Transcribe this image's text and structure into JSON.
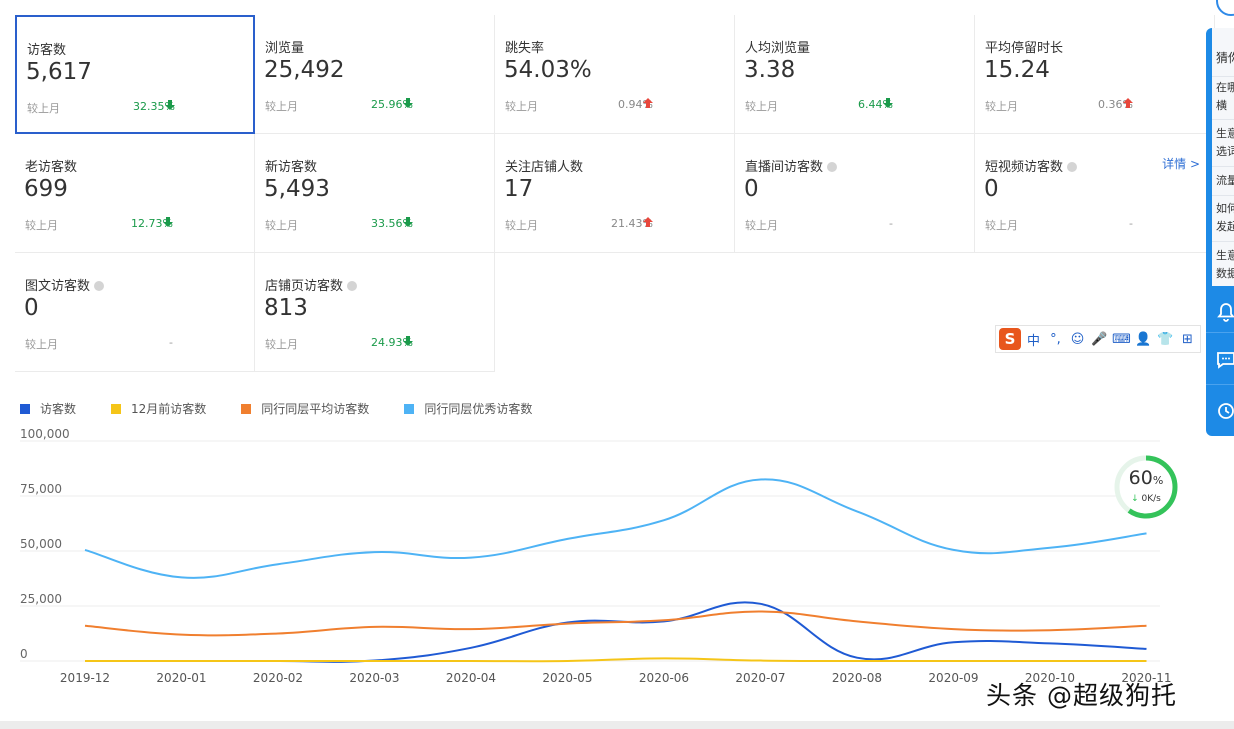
{
  "cards": [
    {
      "title": "访客数",
      "value": "5,617",
      "cmp": "较上月",
      "pct": "32.35%",
      "dir": "down",
      "help": false
    },
    {
      "title": "浏览量",
      "value": "25,492",
      "cmp": "较上月",
      "pct": "25.96%",
      "dir": "down",
      "help": false
    },
    {
      "title": "跳失率",
      "value": "54.03%",
      "cmp": "较上月",
      "pct": "0.94%",
      "dir": "up",
      "help": false
    },
    {
      "title": "人均浏览量",
      "value": "3.38",
      "cmp": "较上月",
      "pct": "6.44%",
      "dir": "down",
      "help": false
    },
    {
      "title": "平均停留时长",
      "value": "15.24",
      "cmp": "较上月",
      "pct": "0.36%",
      "dir": "up",
      "help": false
    },
    {
      "title": "老访客数",
      "value": "699",
      "cmp": "较上月",
      "pct": "12.73%",
      "dir": "down",
      "help": false
    },
    {
      "title": "新访客数",
      "value": "5,493",
      "cmp": "较上月",
      "pct": "33.56%",
      "dir": "down",
      "help": false
    },
    {
      "title": "关注店铺人数",
      "value": "17",
      "cmp": "较上月",
      "pct": "21.43%",
      "dir": "up",
      "help": false
    },
    {
      "title": "直播间访客数",
      "value": "0",
      "cmp": "较上月",
      "pct": "-",
      "dir": "none",
      "help": true
    },
    {
      "title": "短视频访客数",
      "value": "0",
      "cmp": "较上月",
      "pct": "-",
      "dir": "none",
      "help": true
    },
    {
      "title": "图文访客数",
      "value": "0",
      "cmp": "较上月",
      "pct": "-",
      "dir": "none",
      "help": true
    },
    {
      "title": "店铺页访客数",
      "value": "813",
      "cmp": "较上月",
      "pct": "24.93%",
      "dir": "down",
      "help": true
    }
  ],
  "detail_link": "详情 >",
  "colors": {
    "down": "#1a9a4a",
    "up": "#e8473c",
    "selected_border": "#2a5fcc"
  },
  "side_panel": {
    "rows": [
      "猜你",
      "在哪",
      "横",
      "生意",
      "选词",
      "流量",
      "如何",
      "发起",
      "生意",
      "数据"
    ],
    "icons": [
      "bell-icon",
      "chat-icon",
      "clock-icon"
    ]
  },
  "ime": {
    "logo": "S",
    "icons": [
      "中",
      "°,",
      "☺",
      "🎤",
      "⌨",
      "👤",
      "👕",
      "⊞"
    ]
  },
  "speed_widget": {
    "percent": "60",
    "unit": "%",
    "rate": "0K/s"
  },
  "watermark": "头条 @超级狗托",
  "chart_data": {
    "type": "line",
    "categories": [
      "2019-12",
      "2020-01",
      "2020-02",
      "2020-03",
      "2020-04",
      "2020-05",
      "2020-06",
      "2020-07",
      "2020-08",
      "2020-09",
      "2020-10",
      "2020-11"
    ],
    "ylim": [
      0,
      100000
    ],
    "yticks": [
      "100,000",
      "75,000",
      "50,000",
      "25,000",
      "0"
    ],
    "legend_position": "top-left",
    "grid": true,
    "series": [
      {
        "name": "访客数",
        "color": "#1f5ad4",
        "values": [
          0,
          0,
          0,
          200,
          6000,
          17500,
          18000,
          26000,
          1500,
          8500,
          8000,
          5500
        ]
      },
      {
        "name": "12月前访客数",
        "color": "#f5c518",
        "values": [
          0,
          0,
          0,
          0,
          0,
          0,
          1200,
          200,
          0,
          0,
          0,
          0
        ]
      },
      {
        "name": "同行同层平均访客数",
        "color": "#f07f2f",
        "values": [
          16000,
          12000,
          12500,
          15500,
          14500,
          17000,
          18500,
          22500,
          18000,
          14500,
          14000,
          16000
        ]
      },
      {
        "name": "同行同层优秀访客数",
        "color": "#4eb3f5",
        "values": [
          50500,
          38000,
          44000,
          49500,
          47000,
          55500,
          64000,
          82500,
          68000,
          50500,
          51500,
          58000
        ]
      }
    ]
  }
}
